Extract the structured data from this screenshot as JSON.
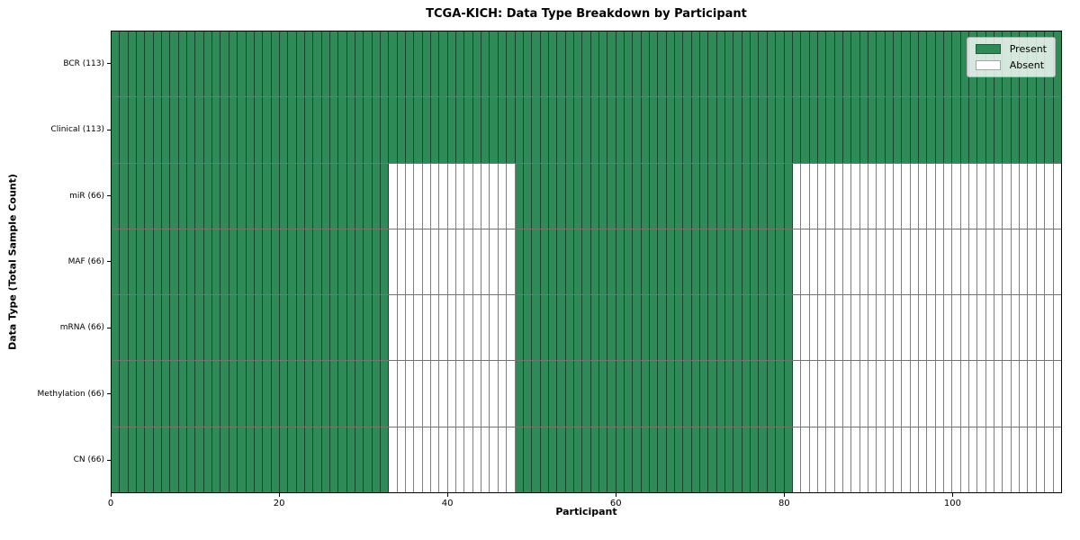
{
  "figure": {
    "title": "TCGA-KICH: Data Type Breakdown by Participant",
    "xlabel": "Participant",
    "ylabel": "Data Type (Total Sample Count)"
  },
  "legend": {
    "position": "upper right",
    "entries": [
      {
        "label": "Present",
        "color": "#2e8b57"
      },
      {
        "label": "Absent",
        "color": "#ffffff"
      }
    ]
  },
  "chart_data": {
    "type": "heatmap",
    "title": "TCGA-KICH: Data Type Breakdown by Participant",
    "xlabel": "Participant",
    "ylabel": "Data Type (Total Sample Count)",
    "n_participants": 113,
    "xlim": [
      0,
      113
    ],
    "x_ticks": [
      0,
      20,
      40,
      60,
      80,
      100
    ],
    "grid": false,
    "legend_position": "upper right",
    "colors": {
      "present": "#2e8b57",
      "absent": "#ffffff"
    },
    "rows": [
      {
        "label": "BCR (113)",
        "present_count": 113,
        "present_segments": [
          [
            0,
            113
          ]
        ]
      },
      {
        "label": "Clinical (113)",
        "present_count": 113,
        "present_segments": [
          [
            0,
            113
          ]
        ]
      },
      {
        "label": "miR (66)",
        "present_count": 66,
        "present_segments": [
          [
            0,
            33
          ],
          [
            48,
            81
          ]
        ]
      },
      {
        "label": "MAF (66)",
        "present_count": 66,
        "present_segments": [
          [
            0,
            33
          ],
          [
            48,
            81
          ]
        ]
      },
      {
        "label": "mRNA (66)",
        "present_count": 66,
        "present_segments": [
          [
            0,
            33
          ],
          [
            48,
            81
          ]
        ]
      },
      {
        "label": "Methylation (66)",
        "present_count": 66,
        "present_segments": [
          [
            0,
            33
          ],
          [
            48,
            81
          ]
        ]
      },
      {
        "label": "CN (66)",
        "present_count": 66,
        "present_segments": [
          [
            0,
            33
          ],
          [
            48,
            81
          ]
        ]
      }
    ]
  }
}
